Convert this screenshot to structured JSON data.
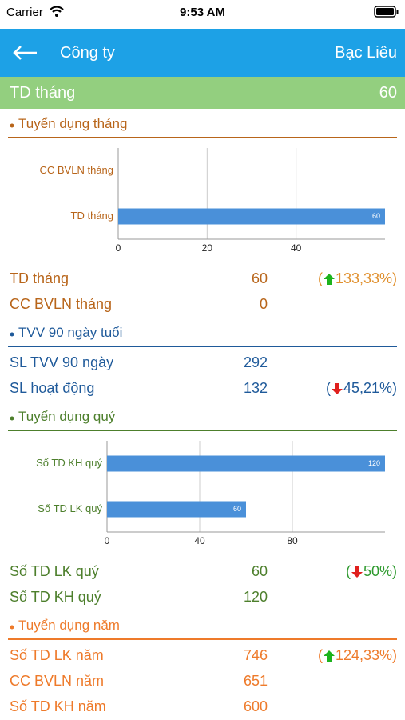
{
  "status_bar": {
    "carrier": "Carrier",
    "time": "9:53 AM"
  },
  "nav": {
    "title": "Công ty",
    "region": "Bạc Liêu"
  },
  "summary": {
    "label": "TD tháng",
    "value": 60
  },
  "sections": [
    {
      "title": "Tuyển dụng tháng",
      "color": "#b8651a",
      "change_color": "#e0902e",
      "chart": {
        "type": "bar",
        "categories": [
          "CC BVLN tháng",
          "TD tháng"
        ],
        "values": [
          0,
          60
        ],
        "color": "#4a90d9",
        "xlim": [
          0,
          60
        ],
        "xticks": [
          0,
          20,
          40
        ],
        "grid": true
      },
      "rows": [
        {
          "label": "TD tháng",
          "value": 60,
          "change": [
            "(",
            "133,33%",
            ")"
          ],
          "direction": "up"
        },
        {
          "label": "CC BVLN tháng",
          "value": 0
        }
      ]
    },
    {
      "title": "TVV 90 ngày tuổi",
      "color": "#1f5a9a",
      "change_color": "#1f5a9a",
      "rows": [
        {
          "label": "SL TVV 90 ngày",
          "value": 292
        },
        {
          "label": "SL hoạt động",
          "value": 132,
          "change": [
            "(",
            "45,21%",
            ")"
          ],
          "direction": "down"
        }
      ]
    },
    {
      "title": "Tuyển dụng quý",
      "color": "#4d7f2c",
      "change_color": "#2e9a2e",
      "chart": {
        "type": "bar",
        "categories": [
          "Số TD KH quý",
          "Số TD LK quý"
        ],
        "values": [
          120,
          60
        ],
        "color": "#4a90d9",
        "xlim": [
          0,
          120
        ],
        "xticks": [
          0,
          40,
          80
        ],
        "grid": true
      },
      "rows": [
        {
          "label": "Số TD LK quý",
          "value": 60,
          "change": [
            "(",
            "50%",
            ")"
          ],
          "direction": "down"
        },
        {
          "label": "Số TD KH quý",
          "value": 120
        }
      ]
    },
    {
      "title": "Tuyển dụng năm",
      "color": "#ee7a2a",
      "change_color": "#ee7a2a",
      "rows": [
        {
          "label": "Số TD LK năm",
          "value": 746,
          "change": [
            "(",
            "124,33%",
            ")"
          ],
          "direction": "up"
        },
        {
          "label": "CC BVLN năm",
          "value": 651
        },
        {
          "label": "Số TD KH năm",
          "value": 600
        }
      ]
    }
  ]
}
